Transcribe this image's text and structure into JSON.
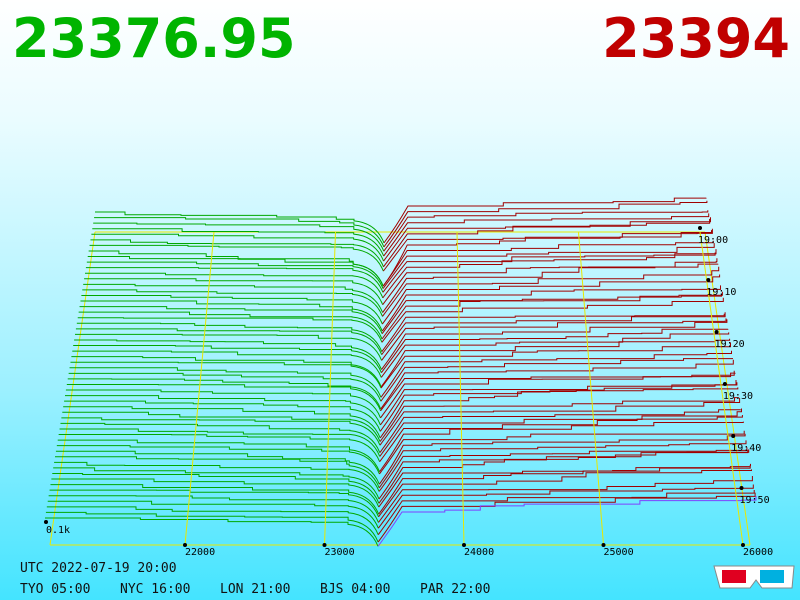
{
  "header": {
    "bid_price": "23376.95",
    "ask_price": "23394"
  },
  "price_axis": {
    "ticks": [
      22000,
      23000,
      24000,
      25000,
      26000
    ]
  },
  "time_axis": {
    "ticks": [
      "19:00",
      "19:10",
      "19:20",
      "19:30",
      "19:40",
      "19:50"
    ]
  },
  "volume_label": "0.1k",
  "footer": {
    "utc": "UTC 2022-07-19 20:00",
    "clocks": [
      "TYO 05:00",
      "NYC 16:00",
      "LON 21:00",
      "BJS 04:00",
      "PAR 22:00"
    ]
  }
}
